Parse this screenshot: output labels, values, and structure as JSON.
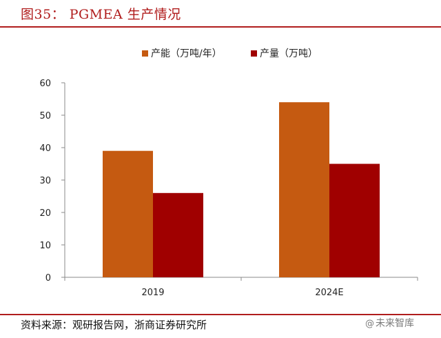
{
  "header": {
    "title": "图35： PGMEA 生产情况"
  },
  "chart_data": {
    "type": "bar",
    "title": "图35： PGMEA 生产情况",
    "categories": [
      "2019",
      "2024E"
    ],
    "series": [
      {
        "name": "产能（万吨/年）",
        "values": [
          39,
          54
        ],
        "color": "#c55a11"
      },
      {
        "name": "产量（万吨）",
        "values": [
          26,
          35
        ],
        "color": "#a00000"
      }
    ],
    "xlabel": "",
    "ylabel": "",
    "ylim": [
      0,
      60
    ],
    "yticks": [
      0,
      10,
      20,
      30,
      40,
      50,
      60
    ],
    "grid": false,
    "legend": "top-center"
  },
  "footer": {
    "source": "资料来源：观研报告网，浙商证券研究所",
    "watermark": "未来智库",
    "watermark_icon": "at-sign-icon"
  },
  "colors": {
    "accent": "#b01c1c"
  }
}
